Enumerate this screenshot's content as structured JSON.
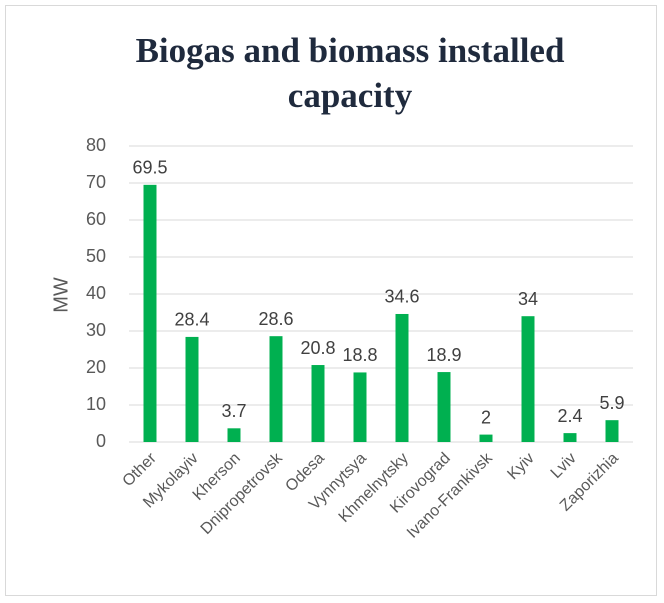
{
  "chart_data": {
    "type": "bar",
    "title": "Biogas and biomass installed capacity",
    "y_label": "MW",
    "categories": [
      "Other",
      "Mykolayiv",
      "Kherson",
      "Dnipropetrovsk",
      "Odesa",
      "Vynnytsya",
      "Khmelnytsky",
      "Kirovograd",
      "Ivano-Frankivsk",
      "Kyiv",
      "Lviv",
      "Zaporizhia"
    ],
    "values": [
      69.5,
      28.4,
      3.7,
      28.6,
      20.8,
      18.8,
      34.6,
      18.9,
      2,
      34,
      2.4,
      5.9
    ],
    "color": "#00b050",
    "ylim": [
      0,
      80
    ],
    "yticks": [
      0,
      10,
      20,
      30,
      40,
      50,
      60,
      70,
      80
    ],
    "grid": true
  }
}
